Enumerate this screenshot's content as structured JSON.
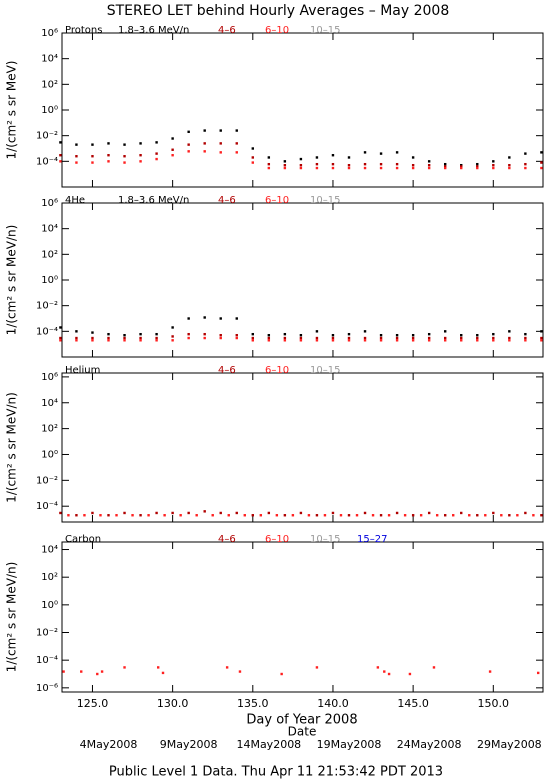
{
  "title": "STEREO LET behind Hourly Averages – May 2008",
  "x_label": "Day of Year 2008",
  "date_label": "Date",
  "footer": "Public Level 1 Data. Thu Apr 11 21:53:42 PDT 2013",
  "date_ticks": [
    {
      "value": 126,
      "label": "4May2008"
    },
    {
      "value": 131,
      "label": "9May2008"
    },
    {
      "value": 136,
      "label": "14May2008"
    },
    {
      "value": 141,
      "label": "19May2008"
    },
    {
      "value": 146,
      "label": "24May2008"
    },
    {
      "value": 151,
      "label": "29May2008"
    }
  ],
  "chart_data": [
    {
      "type": "scatter",
      "label": "Protons",
      "ylabel": "1/(cm² s sr MeV)",
      "log_y": true,
      "xlim": [
        123.1,
        153.1
      ],
      "ylim": [
        1e-06,
        1000000
      ],
      "xticks": [
        {
          "value": 125,
          "label": "125.0"
        },
        {
          "value": 130,
          "label": "130.0"
        },
        {
          "value": 135,
          "label": "135.0"
        },
        {
          "value": 140,
          "label": "140.0"
        },
        {
          "value": 145,
          "label": "145.0"
        },
        {
          "value": 150,
          "label": "150.0"
        }
      ],
      "yticks": [
        {
          "value": 0.0001,
          "label": "10⁻⁴"
        },
        {
          "value": 0.01,
          "label": "10⁻²"
        },
        {
          "value": 1,
          "label": "10⁰"
        },
        {
          "value": 100,
          "label": "10²"
        },
        {
          "value": 10000,
          "label": "10⁴"
        },
        {
          "value": 1000000,
          "label": "10⁶"
        }
      ],
      "series": [
        {
          "name": "1.8–3.6 MeV/n",
          "color": "#000000",
          "x": [
            123,
            124,
            125,
            126,
            127,
            128,
            129,
            130,
            131,
            132,
            133,
            134,
            135,
            136,
            137,
            138,
            139,
            140,
            141,
            142,
            143,
            144,
            145,
            146,
            147,
            148,
            149,
            150,
            151,
            152,
            153
          ],
          "values": [
            0.003,
            0.002,
            0.002,
            0.0025,
            0.002,
            0.0025,
            0.003,
            0.006,
            0.02,
            0.025,
            0.025,
            0.025,
            0.001,
            0.0002,
            0.0001,
            0.00015,
            0.0002,
            0.0003,
            0.0002,
            0.0005,
            0.0004,
            0.0005,
            0.0002,
            0.0001,
            6e-05,
            5e-05,
            6e-05,
            0.0001,
            0.0002,
            0.0004,
            0.0005
          ]
        },
        {
          "name": "4–6",
          "color": "#b00000",
          "x": [
            123,
            124,
            125,
            126,
            127,
            128,
            129,
            130,
            131,
            132,
            133,
            134,
            135,
            136,
            137,
            138,
            139,
            140,
            141,
            142,
            143,
            144,
            145,
            146,
            147,
            148,
            149,
            150,
            151,
            152,
            153
          ],
          "values": [
            0.0003,
            0.00025,
            0.00025,
            0.0003,
            0.00025,
            0.0003,
            0.0004,
            0.0008,
            0.002,
            0.0025,
            0.0025,
            0.0025,
            0.0002,
            6e-05,
            5e-05,
            5e-05,
            6e-05,
            6e-05,
            5e-05,
            6e-05,
            6e-05,
            6e-05,
            5e-05,
            5e-05,
            4e-05,
            4e-05,
            4e-05,
            5e-05,
            5e-05,
            6e-05,
            8e-05
          ]
        },
        {
          "name": "6–10",
          "color": "#ff2020",
          "x": [
            123,
            124,
            125,
            126,
            127,
            128,
            129,
            130,
            131,
            132,
            133,
            134,
            135,
            136,
            137,
            138,
            139,
            140,
            141,
            142,
            143,
            144,
            145,
            146,
            147,
            148,
            149,
            150,
            151,
            152,
            153
          ],
          "values": [
            0.0001,
            8e-05,
            8e-05,
            0.0001,
            8e-05,
            0.0001,
            0.00015,
            0.0003,
            0.0006,
            0.0006,
            0.0005,
            0.0005,
            8e-05,
            3e-05,
            3e-05,
            3e-05,
            3e-05,
            3e-05,
            3e-05,
            3e-05,
            3e-05,
            3e-05,
            3e-05,
            3e-05,
            3e-05,
            3e-05,
            3e-05,
            3e-05,
            3e-05,
            3e-05,
            3e-05
          ]
        },
        {
          "name": "10–15",
          "color": "#999999",
          "x": [],
          "values": []
        }
      ]
    },
    {
      "type": "scatter",
      "label": "4He",
      "ylabel": "1/(cm² s sr MeV/n)",
      "log_y": true,
      "xlim": [
        123.1,
        153.1
      ],
      "ylim": [
        1e-06,
        1000000
      ],
      "xticks": [
        {
          "value": 125,
          "label": "125.0"
        },
        {
          "value": 130,
          "label": "130.0"
        },
        {
          "value": 135,
          "label": "135.0"
        },
        {
          "value": 140,
          "label": "140.0"
        },
        {
          "value": 145,
          "label": "145.0"
        },
        {
          "value": 150,
          "label": "150.0"
        }
      ],
      "yticks": [
        {
          "value": 0.0001,
          "label": "10⁻⁴"
        },
        {
          "value": 0.01,
          "label": "10⁻²"
        },
        {
          "value": 1,
          "label": "10⁰"
        },
        {
          "value": 100,
          "label": "10²"
        },
        {
          "value": 10000,
          "label": "10⁴"
        },
        {
          "value": 1000000,
          "label": "10⁶"
        }
      ],
      "series": [
        {
          "name": "1.8–3.6 MeV/n",
          "color": "#000000",
          "x": [
            123,
            124,
            125,
            126,
            127,
            128,
            129,
            130,
            131,
            132,
            133,
            134,
            135,
            136,
            137,
            138,
            139,
            140,
            141,
            142,
            143,
            144,
            145,
            146,
            147,
            148,
            149,
            150,
            151,
            152,
            153
          ],
          "values": [
            0.0002,
            0.0001,
            8e-05,
            6e-05,
            5e-05,
            6e-05,
            6e-05,
            0.0002,
            0.001,
            0.0012,
            0.001,
            0.001,
            6e-05,
            5e-05,
            6e-05,
            5e-05,
            0.0001,
            5e-05,
            6e-05,
            0.0001,
            5e-05,
            5e-05,
            5e-05,
            6e-05,
            0.0001,
            5e-05,
            5e-05,
            6e-05,
            0.0001,
            6e-05,
            0.0001
          ]
        },
        {
          "name": "4–6",
          "color": "#b00000",
          "x": [
            123,
            124,
            125,
            126,
            127,
            128,
            129,
            130,
            131,
            132,
            133,
            134,
            135,
            136,
            137,
            138,
            139,
            140,
            141,
            142,
            143,
            144,
            145,
            146,
            147,
            148,
            149,
            150,
            151,
            152,
            153
          ],
          "values": [
            3e-05,
            3e-05,
            3e-05,
            3e-05,
            3e-05,
            3e-05,
            3e-05,
            4e-05,
            6e-05,
            6e-05,
            5e-05,
            5e-05,
            3e-05,
            3e-05,
            3e-05,
            3e-05,
            3e-05,
            3e-05,
            3e-05,
            3e-05,
            3e-05,
            3e-05,
            3e-05,
            3e-05,
            3e-05,
            3e-05,
            3e-05,
            3e-05,
            3e-05,
            3e-05,
            3e-05
          ]
        },
        {
          "name": "6–10",
          "color": "#ff2020",
          "x": [
            123,
            124,
            125,
            126,
            127,
            128,
            129,
            130,
            131,
            132,
            133,
            134,
            135,
            136,
            137,
            138,
            139,
            140,
            141,
            142,
            143,
            144,
            145,
            146,
            147,
            148,
            149,
            150,
            151,
            152,
            153
          ],
          "values": [
            2e-05,
            2e-05,
            2e-05,
            2e-05,
            2e-05,
            2e-05,
            2e-05,
            2e-05,
            3e-05,
            3e-05,
            3e-05,
            3e-05,
            2e-05,
            2e-05,
            2e-05,
            2e-05,
            2e-05,
            2e-05,
            2e-05,
            2e-05,
            2e-05,
            2e-05,
            2e-05,
            2e-05,
            2e-05,
            2e-05,
            2e-05,
            2e-05,
            2e-05,
            2e-05,
            2e-05
          ]
        },
        {
          "name": "10–15",
          "color": "#999999",
          "x": [],
          "values": []
        }
      ]
    },
    {
      "type": "scatter",
      "label": "Helium",
      "ylabel": "1/(cm² s sr MeV/n)",
      "log_y": true,
      "xlim": [
        123.1,
        153.1
      ],
      "ylim": [
        6e-06,
        2000000
      ],
      "xticks": [
        {
          "value": 125,
          "label": "125.0"
        },
        {
          "value": 130,
          "label": "130.0"
        },
        {
          "value": 135,
          "label": "135.0"
        },
        {
          "value": 140,
          "label": "140.0"
        },
        {
          "value": 145,
          "label": "145.0"
        },
        {
          "value": 150,
          "label": "150.0"
        }
      ],
      "yticks": [
        {
          "value": 0.0001,
          "label": "10⁻⁴"
        },
        {
          "value": 0.01,
          "label": "10⁻²"
        },
        {
          "value": 1,
          "label": "10⁰"
        },
        {
          "value": 100,
          "label": "10²"
        },
        {
          "value": 10000,
          "label": "10⁴"
        },
        {
          "value": 1000000,
          "label": "10⁶"
        }
      ],
      "series": [
        {
          "name": "4–6",
          "color": "#b00000",
          "x": [
            123,
            124,
            125,
            126,
            127,
            128,
            129,
            130,
            131,
            132,
            133,
            134,
            135,
            136,
            137,
            138,
            139,
            140,
            141,
            142,
            143,
            144,
            145,
            146,
            147,
            148,
            149,
            150,
            151,
            152,
            153
          ],
          "values": [
            3e-05,
            2e-05,
            3e-05,
            2e-05,
            3e-05,
            2e-05,
            3e-05,
            3e-05,
            3e-05,
            4e-05,
            3e-05,
            3e-05,
            2e-05,
            3e-05,
            2e-05,
            3e-05,
            2e-05,
            3e-05,
            2e-05,
            3e-05,
            2e-05,
            3e-05,
            2e-05,
            3e-05,
            2e-05,
            3e-05,
            2e-05,
            3e-05,
            2e-05,
            3e-05,
            2e-05
          ]
        },
        {
          "name": "6–10",
          "color": "#ff2020",
          "x": [
            123.5,
            124.5,
            125.5,
            126.5,
            127.5,
            128.5,
            129.5,
            130.5,
            131.5,
            132.5,
            133.5,
            134.5,
            135.5,
            136.5,
            137.5,
            138.5,
            139.5,
            140.5,
            141.5,
            142.5,
            143.5,
            144.5,
            145.5,
            146.5,
            147.5,
            148.5,
            149.5,
            150.5,
            151.5,
            152.5
          ],
          "values": [
            2e-05,
            2e-05,
            2e-05,
            2e-05,
            2e-05,
            2e-05,
            2e-05,
            2e-05,
            2e-05,
            2e-05,
            2e-05,
            2e-05,
            2e-05,
            2e-05,
            2e-05,
            2e-05,
            2e-05,
            2e-05,
            2e-05,
            2e-05,
            2e-05,
            2e-05,
            2e-05,
            2e-05,
            2e-05,
            2e-05,
            2e-05,
            2e-05,
            2e-05,
            2e-05
          ]
        },
        {
          "name": "10–15",
          "color": "#999999",
          "x": [],
          "values": []
        }
      ]
    },
    {
      "type": "scatter",
      "label": "Carbon",
      "ylabel": "1/(cm² s sr MeV/n)",
      "log_y": true,
      "xlim": [
        123.1,
        153.1
      ],
      "ylim": [
        5e-07,
        35000
      ],
      "xticks": [
        {
          "value": 125,
          "label": "125.0"
        },
        {
          "value": 130,
          "label": "130.0"
        },
        {
          "value": 135,
          "label": "135.0"
        },
        {
          "value": 140,
          "label": "140.0"
        },
        {
          "value": 145,
          "label": "145.0"
        },
        {
          "value": 150,
          "label": "150.0"
        }
      ],
      "yticks": [
        {
          "value": 1e-06,
          "label": "10⁻⁶"
        },
        {
          "value": 0.0001,
          "label": "10⁻⁴"
        },
        {
          "value": 0.01,
          "label": "10⁻²"
        },
        {
          "value": 1,
          "label": "10⁰"
        },
        {
          "value": 100,
          "label": "10²"
        },
        {
          "value": 10000,
          "label": "10⁴"
        }
      ],
      "series": [
        {
          "name": "4–6",
          "color": "#b00000",
          "x": [],
          "values": []
        },
        {
          "name": "6–10",
          "color": "#ff2020",
          "x": [
            123.2,
            124.3,
            125.3,
            125.6,
            127.0,
            129.1,
            129.4,
            133.4,
            134.2,
            136.8,
            139.0,
            142.8,
            143.2,
            143.5,
            144.8,
            146.3,
            149.8,
            152.8
          ],
          "values": [
            1.5e-05,
            1.5e-05,
            1e-05,
            1.5e-05,
            3e-05,
            3e-05,
            1.2e-05,
            3e-05,
            1.5e-05,
            1e-05,
            3e-05,
            3e-05,
            1.5e-05,
            1e-05,
            1e-05,
            3e-05,
            1.5e-05,
            1.2e-05
          ]
        },
        {
          "name": "10–15",
          "color": "#999999",
          "x": [],
          "values": []
        },
        {
          "name": "15–27",
          "color": "#0000dd",
          "x": [],
          "values": []
        }
      ]
    }
  ]
}
